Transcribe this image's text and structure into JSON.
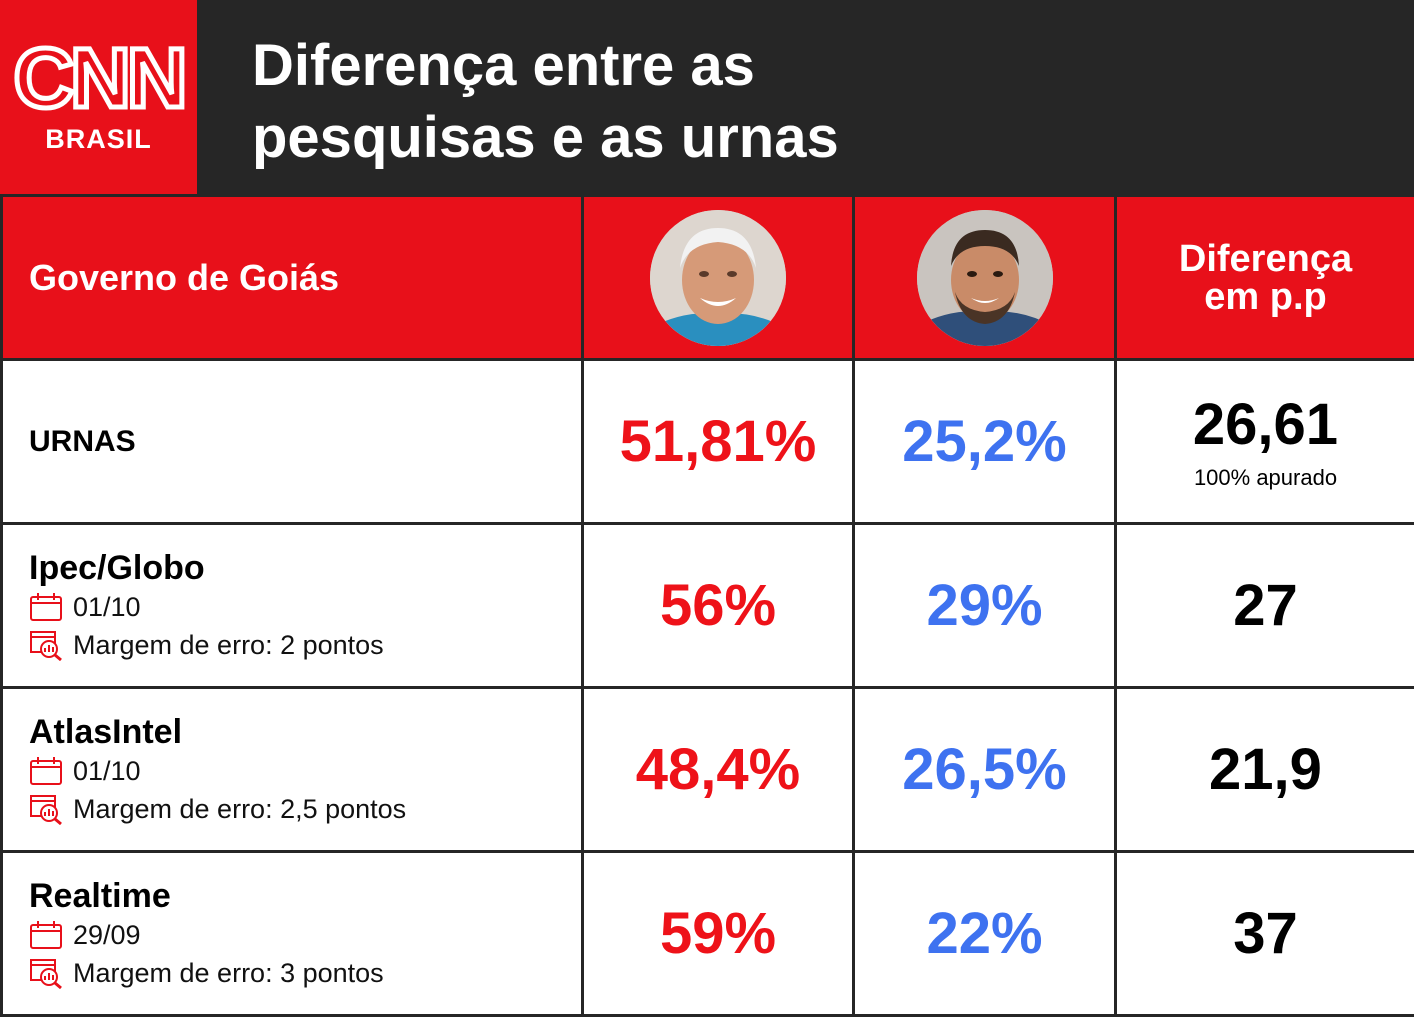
{
  "brand": {
    "logo_text": "CNN",
    "logo_sub": "BRASIL"
  },
  "title": {
    "line1": "Diferença entre as",
    "line2": "pesquisas e as urnas"
  },
  "table": {
    "region": "Governo de Goiás",
    "diff_header_line1": "Diferença",
    "diff_header_line2": "em p.p",
    "rows": [
      {
        "source": "URNAS",
        "date": "",
        "margin": "",
        "cand1": "51,81%",
        "cand2": "25,2%",
        "diff": "26,61",
        "note": "100% apurado"
      },
      {
        "source": "Ipec/Globo",
        "date": "01/10",
        "margin": "Margem de erro: 2 pontos",
        "cand1": "56%",
        "cand2": "29%",
        "diff": "27",
        "note": ""
      },
      {
        "source": "AtlasIntel",
        "date": "01/10",
        "margin": "Margem de erro: 2,5 pontos",
        "cand1": "48,4%",
        "cand2": "26,5%",
        "diff": "21,9",
        "note": ""
      },
      {
        "source": "Realtime",
        "date": "29/09",
        "margin": "Margem de erro: 3 pontos",
        "cand1": "59%",
        "cand2": "22%",
        "diff": "37",
        "note": ""
      }
    ]
  },
  "colors": {
    "brand_red": "#e8101a",
    "cand1_red": "#ee1219",
    "cand2_blue": "#3e72f0",
    "header_dark": "#262626"
  },
  "icons": {
    "date": "calendar-icon",
    "margin": "chart-magnifier-icon",
    "candidates": [
      "candidate-photo-1",
      "candidate-photo-2"
    ]
  }
}
